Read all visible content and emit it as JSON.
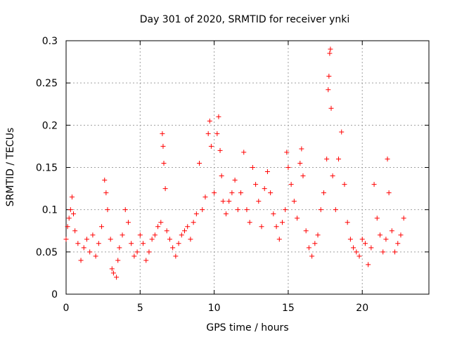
{
  "chart_data": {
    "type": "scatter",
    "title": "Day 301 of 2020, SRMTID for receiver ynki",
    "xlabel": "GPS time / hours",
    "ylabel": "SRMTID / TECUs",
    "xlim": [
      0,
      24.5
    ],
    "ylim": [
      0,
      0.3
    ],
    "xticks": [
      0,
      5,
      10,
      15,
      20
    ],
    "yticks": [
      0,
      0.05,
      0.1,
      0.15,
      0.2,
      0.25,
      0.3
    ],
    "xtick_labels": [
      "0",
      "5",
      "10",
      "15",
      "20"
    ],
    "ytick_labels": [
      "0",
      "0.05",
      "0.1",
      "0.15",
      "0.2",
      "0.25",
      "0.3"
    ],
    "grid": true,
    "marker": "plus",
    "color": "#ff0000",
    "series": [
      {
        "name": "SRMTID",
        "points": [
          [
            0.0,
            0.065
          ],
          [
            0.1,
            0.08
          ],
          [
            0.2,
            0.09
          ],
          [
            0.3,
            0.1
          ],
          [
            0.4,
            0.115
          ],
          [
            0.5,
            0.095
          ],
          [
            0.6,
            0.075
          ],
          [
            0.8,
            0.06
          ],
          [
            1.0,
            0.04
          ],
          [
            1.2,
            0.055
          ],
          [
            1.4,
            0.065
          ],
          [
            1.6,
            0.05
          ],
          [
            1.8,
            0.07
          ],
          [
            2.0,
            0.045
          ],
          [
            2.2,
            0.06
          ],
          [
            2.4,
            0.08
          ],
          [
            2.6,
            0.135
          ],
          [
            2.7,
            0.12
          ],
          [
            2.8,
            0.1
          ],
          [
            3.0,
            0.065
          ],
          [
            3.1,
            0.03
          ],
          [
            3.2,
            0.025
          ],
          [
            3.4,
            0.02
          ],
          [
            3.5,
            0.04
          ],
          [
            3.6,
            0.055
          ],
          [
            3.8,
            0.07
          ],
          [
            4.0,
            0.1
          ],
          [
            4.2,
            0.085
          ],
          [
            4.4,
            0.06
          ],
          [
            4.6,
            0.045
          ],
          [
            4.8,
            0.05
          ],
          [
            5.0,
            0.07
          ],
          [
            5.2,
            0.06
          ],
          [
            5.4,
            0.04
          ],
          [
            5.6,
            0.05
          ],
          [
            5.8,
            0.065
          ],
          [
            6.0,
            0.07
          ],
          [
            6.2,
            0.08
          ],
          [
            6.4,
            0.085
          ],
          [
            6.5,
            0.19
          ],
          [
            6.55,
            0.175
          ],
          [
            6.6,
            0.155
          ],
          [
            6.7,
            0.125
          ],
          [
            6.8,
            0.075
          ],
          [
            7.0,
            0.065
          ],
          [
            7.2,
            0.055
          ],
          [
            7.4,
            0.045
          ],
          [
            7.6,
            0.06
          ],
          [
            7.8,
            0.07
          ],
          [
            8.0,
            0.075
          ],
          [
            8.2,
            0.08
          ],
          [
            8.4,
            0.065
          ],
          [
            8.6,
            0.085
          ],
          [
            8.8,
            0.095
          ],
          [
            9.0,
            0.155
          ],
          [
            9.2,
            0.1
          ],
          [
            9.4,
            0.115
          ],
          [
            9.6,
            0.19
          ],
          [
            9.7,
            0.205
          ],
          [
            9.8,
            0.175
          ],
          [
            10.0,
            0.12
          ],
          [
            10.2,
            0.19
          ],
          [
            10.3,
            0.21
          ],
          [
            10.4,
            0.17
          ],
          [
            10.5,
            0.14
          ],
          [
            10.6,
            0.11
          ],
          [
            10.8,
            0.095
          ],
          [
            11.0,
            0.11
          ],
          [
            11.2,
            0.12
          ],
          [
            11.4,
            0.135
          ],
          [
            11.6,
            0.1
          ],
          [
            11.8,
            0.12
          ],
          [
            12.0,
            0.168
          ],
          [
            12.2,
            0.1
          ],
          [
            12.4,
            0.085
          ],
          [
            12.6,
            0.15
          ],
          [
            12.8,
            0.13
          ],
          [
            13.0,
            0.11
          ],
          [
            13.2,
            0.08
          ],
          [
            13.4,
            0.125
          ],
          [
            13.6,
            0.145
          ],
          [
            13.8,
            0.12
          ],
          [
            14.0,
            0.095
          ],
          [
            14.2,
            0.08
          ],
          [
            14.4,
            0.065
          ],
          [
            14.6,
            0.085
          ],
          [
            14.8,
            0.1
          ],
          [
            14.9,
            0.168
          ],
          [
            15.0,
            0.15
          ],
          [
            15.2,
            0.13
          ],
          [
            15.4,
            0.11
          ],
          [
            15.6,
            0.09
          ],
          [
            15.8,
            0.155
          ],
          [
            15.9,
            0.172
          ],
          [
            16.0,
            0.14
          ],
          [
            16.2,
            0.075
          ],
          [
            16.4,
            0.055
          ],
          [
            16.6,
            0.045
          ],
          [
            16.8,
            0.06
          ],
          [
            17.0,
            0.07
          ],
          [
            17.2,
            0.1
          ],
          [
            17.4,
            0.12
          ],
          [
            17.6,
            0.16
          ],
          [
            17.7,
            0.242
          ],
          [
            17.75,
            0.258
          ],
          [
            17.8,
            0.285
          ],
          [
            17.85,
            0.29
          ],
          [
            17.9,
            0.22
          ],
          [
            18.0,
            0.14
          ],
          [
            18.2,
            0.1
          ],
          [
            18.4,
            0.16
          ],
          [
            18.6,
            0.192
          ],
          [
            18.8,
            0.13
          ],
          [
            19.0,
            0.085
          ],
          [
            19.2,
            0.065
          ],
          [
            19.4,
            0.055
          ],
          [
            19.6,
            0.05
          ],
          [
            19.8,
            0.045
          ],
          [
            20.0,
            0.065
          ],
          [
            20.2,
            0.06
          ],
          [
            20.4,
            0.035
          ],
          [
            20.6,
            0.055
          ],
          [
            20.8,
            0.13
          ],
          [
            21.0,
            0.09
          ],
          [
            21.2,
            0.07
          ],
          [
            21.4,
            0.05
          ],
          [
            21.6,
            0.065
          ],
          [
            21.7,
            0.16
          ],
          [
            21.8,
            0.12
          ],
          [
            22.0,
            0.075
          ],
          [
            22.2,
            0.05
          ],
          [
            22.4,
            0.06
          ],
          [
            22.6,
            0.07
          ],
          [
            22.8,
            0.09
          ]
        ]
      }
    ]
  }
}
